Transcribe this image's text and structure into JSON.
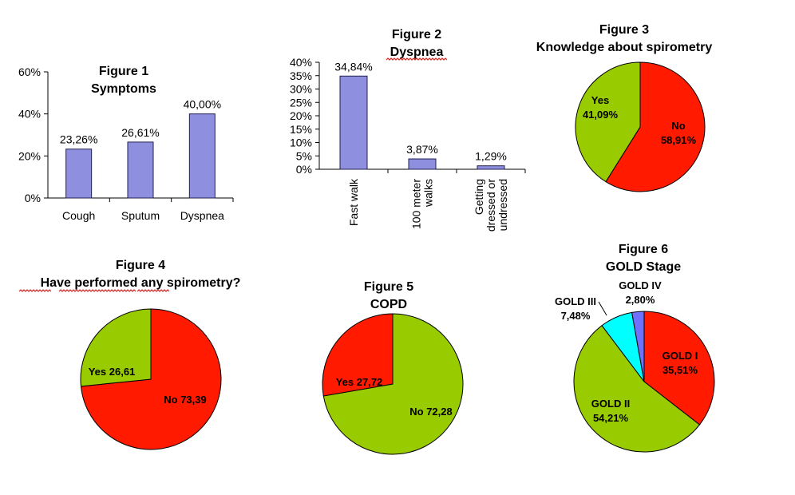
{
  "colors": {
    "bar_fill": "#8f8fe0",
    "bar_stroke": "#202050",
    "red": "#ff1a00",
    "green": "#99cc00",
    "cyan": "#00ffff",
    "blue": "#7070ff",
    "axis": "#000000",
    "spell_underline": "#e02020"
  },
  "chart_data": [
    {
      "id": "fig1",
      "type": "bar",
      "title": "Figure 1",
      "subtitle": "Symptoms",
      "categories": [
        "Cough",
        "Sputum",
        "Dyspnea"
      ],
      "values": [
        23.26,
        26.61,
        40.0
      ],
      "data_labels": [
        "23,26%",
        "26,61%",
        "40,00%"
      ],
      "ylim": [
        0,
        60
      ],
      "yticks": [
        0,
        20,
        40,
        60
      ],
      "ytick_labels": [
        "0%",
        "20%",
        "40%",
        "60%"
      ],
      "grid": false,
      "legend": "none"
    },
    {
      "id": "fig2",
      "type": "bar",
      "title": "Figure 2",
      "subtitle": "Dyspnea",
      "categories": [
        "Fast walk",
        "100 meter walks",
        "Getting dressed or undressed"
      ],
      "category_lines": [
        [
          "Fast walk"
        ],
        [
          "100 meter",
          "walks"
        ],
        [
          "Getting",
          "dressed or",
          "undressed"
        ]
      ],
      "values": [
        34.84,
        3.87,
        1.29
      ],
      "data_labels": [
        "34,84%",
        "3,87%",
        "1,29%"
      ],
      "ylim": [
        0,
        40
      ],
      "yticks": [
        0,
        5,
        10,
        15,
        20,
        25,
        30,
        35,
        40
      ],
      "ytick_labels": [
        "0%",
        "5%",
        "10%",
        "15%",
        "20%",
        "25%",
        "30%",
        "35%",
        "40%"
      ],
      "grid": false,
      "legend": "none"
    },
    {
      "id": "fig3",
      "type": "pie",
      "title": "Figure 3",
      "subtitle": "Knowledge about spirometry",
      "slices": [
        {
          "label": "No",
          "value": 58.91,
          "value_label": "58,91%",
          "color": "#ff1a00"
        },
        {
          "label": "Yes",
          "value": 41.09,
          "value_label": "41,09%",
          "color": "#99cc00"
        }
      ]
    },
    {
      "id": "fig4",
      "type": "pie",
      "title": "Figure 4",
      "subtitle": "Have performed any spirometry?",
      "slices": [
        {
          "label": "No 73,39",
          "value": 73.39,
          "color": "#ff1a00"
        },
        {
          "label": "Yes 26,61",
          "value": 26.61,
          "color": "#99cc00"
        }
      ]
    },
    {
      "id": "fig5",
      "type": "pie",
      "title": "Figure 5",
      "subtitle": "COPD",
      "slices": [
        {
          "label": "No 72,28",
          "value": 72.28,
          "color": "#99cc00"
        },
        {
          "label": "Yes 27,72",
          "value": 27.72,
          "color": "#ff1a00"
        }
      ]
    },
    {
      "id": "fig6",
      "type": "pie",
      "title": "Figure 6",
      "subtitle": "GOLD Stage",
      "slices": [
        {
          "label": "GOLD I",
          "value": 35.51,
          "value_label": "35,51%",
          "color": "#ff1a00"
        },
        {
          "label": "GOLD II",
          "value": 54.21,
          "value_label": "54,21%",
          "color": "#99cc00"
        },
        {
          "label": "GOLD III",
          "value": 7.48,
          "value_label": "7,48%",
          "color": "#00ffff"
        },
        {
          "label": "GOLD IV",
          "value": 2.8,
          "value_label": "2,80%",
          "color": "#7070ff"
        }
      ]
    }
  ]
}
